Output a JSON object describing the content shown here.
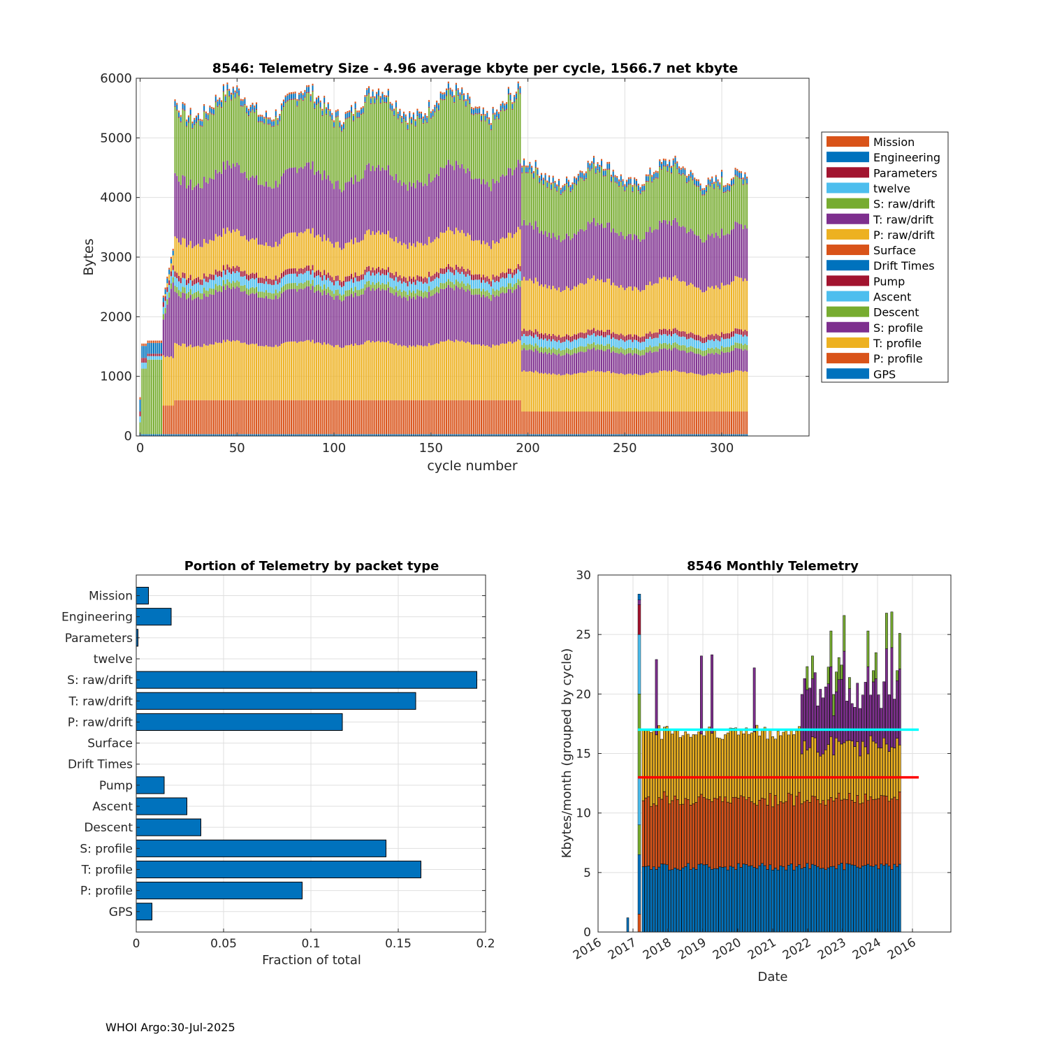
{
  "footer": "WHOI Argo:30-Jul-2025",
  "legend_colors": {
    "Mission": "#D95319",
    "Engineering": "#0072BD",
    "Parameters": "#A2142F",
    "twelve": "#4DBEEE",
    "S: raw/drift": "#77AC30",
    "T: raw/drift": "#7E2F8E",
    "P: raw/drift": "#EDB120",
    "Surface": "#D95319",
    "Drift Times": "#0072BD",
    "Pump": "#A2142F",
    "Ascent": "#4DBEEE",
    "Descent": "#77AC30",
    "S: profile": "#7E2F8E",
    "T: profile": "#EDB120",
    "P: profile": "#D95319",
    "GPS": "#0072BD"
  },
  "chart_data": [
    {
      "id": "telemetry_size",
      "type": "bar",
      "stacked": true,
      "title": "8546: Telemetry Size - 4.96 average kbyte per cycle, 1566.7 net kbyte",
      "xlabel": "cycle number",
      "ylabel": "Bytes",
      "xlim": [
        -2,
        345
      ],
      "ylim": [
        0,
        6000
      ],
      "xticks": [
        0,
        50,
        100,
        150,
        200,
        250,
        300
      ],
      "yticks": [
        0,
        1000,
        2000,
        3000,
        4000,
        5000,
        6000
      ],
      "n_cycles": 314,
      "legend": [
        "Mission",
        "Engineering",
        "Parameters",
        "twelve",
        "S: raw/drift",
        "T: raw/drift",
        "P: raw/drift",
        "Surface",
        "Drift Times",
        "Pump",
        "Ascent",
        "Descent",
        "S: profile",
        "T: profile",
        "P: profile",
        "GPS"
      ],
      "legend_position": "right",
      "series_bytes_approx": [
        {
          "name": "GPS",
          "cycles_0_196": 30,
          "cycles_197_313": 30
        },
        {
          "name": "P: profile",
          "cycles_0_196": 570,
          "cycles_197_313": 380
        },
        {
          "name": "T: profile",
          "cycles_0_196": 950,
          "cycles_197_313": 650
        },
        {
          "name": "S: profile",
          "cycles_0_196": 850,
          "cycles_197_313": 350
        },
        {
          "name": "Descent",
          "cycles_0_196": 100,
          "cycles_197_313": 90
        },
        {
          "name": "Ascent",
          "cycles_0_196": 150,
          "cycles_197_313": 140
        },
        {
          "name": "Pump",
          "cycles_0_196": 90,
          "cycles_197_313": 90
        },
        {
          "name": "P: raw/drift",
          "cycles_0_196": 580,
          "cycles_197_313": 820
        },
        {
          "name": "T: raw/drift",
          "cycles_0_196": 1050,
          "cycles_197_313": 900
        },
        {
          "name": "S: raw/drift",
          "cycles_0_196": 1100,
          "cycles_197_313": 850
        },
        {
          "name": "Parameters",
          "cycles_0_196": 15,
          "cycles_197_313": 15
        },
        {
          "name": "Engineering",
          "cycles_0_196": 80,
          "cycles_197_313": 80
        },
        {
          "name": "Mission",
          "cycles_0_196": 30,
          "cycles_197_313": 30
        }
      ],
      "peak_value": 5780
    },
    {
      "id": "portion_by_packet",
      "type": "bar",
      "orientation": "horizontal",
      "title": "Portion of Telemetry by packet type",
      "xlabel": "Fraction of total",
      "ylabel": "",
      "xlim": [
        0,
        0.2
      ],
      "xticks": [
        0,
        0.05,
        0.1,
        0.15,
        0.2
      ],
      "xtick_labels": [
        "0",
        "0.05",
        "0.1",
        "0.15",
        "0.2"
      ],
      "categories": [
        "Mission",
        "Engineering",
        "Parameters",
        "twelve",
        "S: raw/drift",
        "T: raw/drift",
        "P: raw/drift",
        "Surface",
        "Drift Times",
        "Pump",
        "Ascent",
        "Descent",
        "S: profile",
        "T: profile",
        "P: profile",
        "GPS"
      ],
      "values": [
        0.007,
        0.02,
        0.001,
        0.0,
        0.195,
        0.16,
        0.118,
        0.0,
        0.0,
        0.016,
        0.029,
        0.037,
        0.143,
        0.163,
        0.095,
        0.009
      ]
    },
    {
      "id": "monthly_telemetry",
      "type": "bar",
      "stacked": true,
      "title": "8546 Monthly Telemetry",
      "xlabel": "Date",
      "ylabel": "Kbytes/month (grouped by cycle)",
      "ylim": [
        0,
        30
      ],
      "yticks": [
        0,
        5,
        10,
        15,
        20,
        25,
        30
      ],
      "xtick_labels": [
        "2016",
        "2017",
        "2018",
        "2019",
        "2020",
        "2021",
        "2022",
        "2023",
        "2024",
        "2016"
      ],
      "reference_lines": [
        {
          "name": "cyan",
          "value": 17.0,
          "color": "#00FFFF"
        },
        {
          "name": "red",
          "value": 13.0,
          "color": "#FF0000"
        }
      ],
      "months": 98,
      "segments_avg_kbyte": {
        "blue": 5.5,
        "orange": 5.5,
        "yellow": 5.5,
        "purple": 3.0,
        "green": 1.0
      },
      "peak_values": [
        28.4,
        22.9,
        23.2,
        23.3,
        22.2,
        21.3,
        25.3,
        26.6,
        25.3,
        26.8,
        26.9,
        25.1
      ]
    }
  ]
}
